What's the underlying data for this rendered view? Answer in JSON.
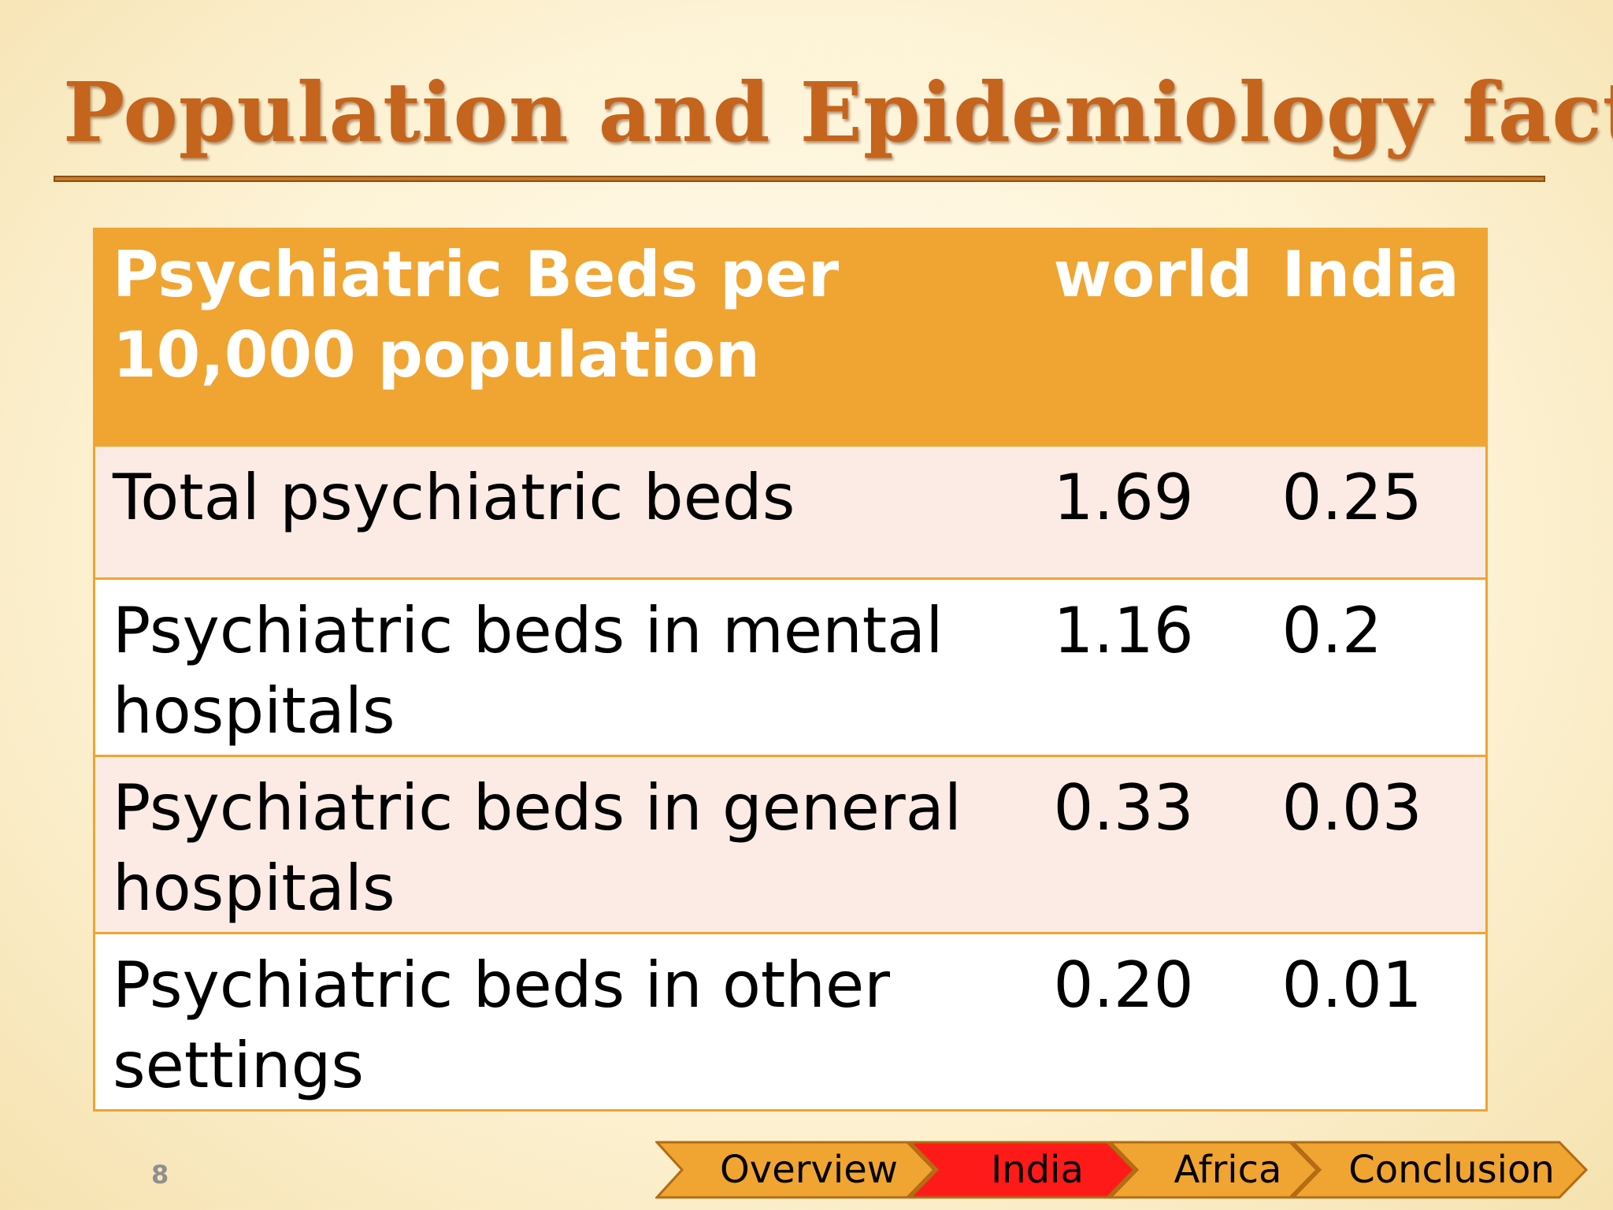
{
  "slide": {
    "title": "Population and Epidemiology facts",
    "number": "8"
  },
  "table": {
    "headers": [
      "Psychiatric Beds per 10,000 population",
      "world",
      "India"
    ],
    "rows": [
      [
        "Total psychiatric beds",
        "1.69",
        "0.25"
      ],
      [
        "Psychiatric beds in mental hospitals",
        "1.16",
        "0.2"
      ],
      [
        "Psychiatric beds in general hospitals",
        "0.33",
        "0.03"
      ],
      [
        "Psychiatric beds in other settings",
        "0.20",
        "0.01"
      ]
    ]
  },
  "nav": {
    "items": [
      {
        "label": "Overview",
        "active": false
      },
      {
        "label": "India",
        "active": true
      },
      {
        "label": "Africa",
        "active": false
      },
      {
        "label": "Conclusion",
        "active": false
      }
    ],
    "colors": {
      "default": "#f0a431",
      "active": "#ff1a1a",
      "outline": "#b36b12"
    }
  }
}
